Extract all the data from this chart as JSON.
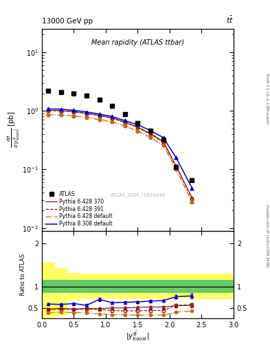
{
  "title_left": "13000 GeV pp",
  "title_right": "tt̅",
  "plot_title": "Mean rapidity (ATLAS ttbar)",
  "watermark": "ATLAS_2020_I1801434",
  "right_label_top": "Rivet 3.1.10, ≥ 2.8M events",
  "right_label_bot": "mcplots.cern.ch [arXiv:1306.3436]",
  "atlas_x": [
    0.1,
    0.3,
    0.5,
    0.7,
    0.9,
    1.1,
    1.3,
    1.5,
    1.7,
    1.9,
    2.1,
    2.35
  ],
  "atlas_y": [
    2.2,
    2.1,
    2.0,
    1.8,
    1.55,
    1.2,
    0.87,
    0.62,
    0.46,
    0.32,
    0.11,
    0.065
  ],
  "p6428_370_x": [
    0.1,
    0.3,
    0.5,
    0.7,
    0.9,
    1.1,
    1.3,
    1.5,
    1.7,
    1.9,
    2.1,
    2.35
  ],
  "p6428_370_y": [
    1.02,
    1.01,
    0.97,
    0.91,
    0.84,
    0.76,
    0.64,
    0.53,
    0.41,
    0.3,
    0.115,
    0.033
  ],
  "p6428_391_x": [
    0.1,
    0.3,
    0.5,
    0.7,
    0.9,
    1.1,
    1.3,
    1.5,
    1.7,
    1.9,
    2.1,
    2.35
  ],
  "p6428_391_y": [
    1.01,
    1.0,
    0.96,
    0.9,
    0.83,
    0.75,
    0.63,
    0.52,
    0.4,
    0.29,
    0.113,
    0.032
  ],
  "p6428_def_x": [
    0.1,
    0.3,
    0.5,
    0.7,
    0.9,
    1.1,
    1.3,
    1.5,
    1.7,
    1.9,
    2.1,
    2.35
  ],
  "p6428_def_y": [
    0.86,
    0.85,
    0.82,
    0.77,
    0.71,
    0.65,
    0.55,
    0.45,
    0.35,
    0.26,
    0.1,
    0.028
  ],
  "p8308_def_x": [
    0.1,
    0.3,
    0.5,
    0.7,
    0.9,
    1.1,
    1.3,
    1.5,
    1.7,
    1.9,
    2.1,
    2.35
  ],
  "p8308_def_y": [
    1.08,
    1.07,
    1.02,
    0.96,
    0.88,
    0.8,
    0.68,
    0.58,
    0.46,
    0.35,
    0.16,
    0.048
  ],
  "ratio_x": [
    0.1,
    0.3,
    0.5,
    0.7,
    0.9,
    1.1,
    1.3,
    1.5,
    1.7,
    1.9,
    2.1,
    2.35
  ],
  "ratio_p6428_370": [
    0.47,
    0.49,
    0.47,
    0.49,
    0.48,
    0.5,
    0.5,
    0.51,
    0.52,
    0.52,
    0.55,
    0.56
  ],
  "ratio_p6428_391": [
    0.46,
    0.47,
    0.46,
    0.47,
    0.46,
    0.44,
    0.43,
    0.43,
    0.44,
    0.44,
    0.56,
    0.57
  ],
  "ratio_p6428_def": [
    0.38,
    0.4,
    0.39,
    0.38,
    0.36,
    0.34,
    0.34,
    0.33,
    0.33,
    0.33,
    0.4,
    0.43
  ],
  "ratio_p8308_def": [
    0.59,
    0.58,
    0.6,
    0.56,
    0.7,
    0.62,
    0.63,
    0.64,
    0.66,
    0.67,
    0.76,
    0.78
  ],
  "ratio_err_370": [
    0.025,
    0.025,
    0.025,
    0.025,
    0.025,
    0.025,
    0.025,
    0.025,
    0.025,
    0.025,
    0.035,
    0.05
  ],
  "ratio_err_8308": [
    0.025,
    0.025,
    0.025,
    0.025,
    0.04,
    0.025,
    0.025,
    0.025,
    0.025,
    0.025,
    0.04,
    0.06
  ],
  "band_x_edges": [
    0.0,
    0.2,
    0.4,
    0.6,
    0.8,
    1.0,
    1.2,
    1.4,
    1.6,
    1.8,
    2.0,
    2.5,
    3.0
  ],
  "yellow_lo": [
    0.25,
    0.32,
    0.68,
    0.7,
    0.7,
    0.7,
    0.7,
    0.7,
    0.7,
    0.7,
    0.7,
    0.7
  ],
  "yellow_hi": [
    1.58,
    1.42,
    1.32,
    1.3,
    1.3,
    1.3,
    1.3,
    1.3,
    1.3,
    1.3,
    1.3,
    1.3
  ],
  "green_lo": [
    0.85,
    0.85,
    0.85,
    0.85,
    0.85,
    0.85,
    0.85,
    0.85,
    0.85,
    0.85,
    0.85,
    0.85
  ],
  "green_hi": [
    1.15,
    1.15,
    1.15,
    1.15,
    1.15,
    1.15,
    1.15,
    1.15,
    1.15,
    1.15,
    1.15,
    1.15
  ],
  "color_atlas": "#000000",
  "color_p370": "#8b1a1a",
  "color_p391": "#8b1a1a",
  "color_pdef": "#cc6600",
  "color_p8308": "#0000cc",
  "color_green": "#66cc66",
  "color_yellow": "#ffff66",
  "xlim": [
    0.0,
    3.0
  ],
  "ylim_main": [
    0.009,
    25.0
  ],
  "ylim_ratio": [
    0.25,
    2.3
  ],
  "yticks_ratio": [
    0.5,
    1.0,
    2.0
  ],
  "ytick_labels_ratio": [
    "0.5",
    "1",
    "2"
  ]
}
